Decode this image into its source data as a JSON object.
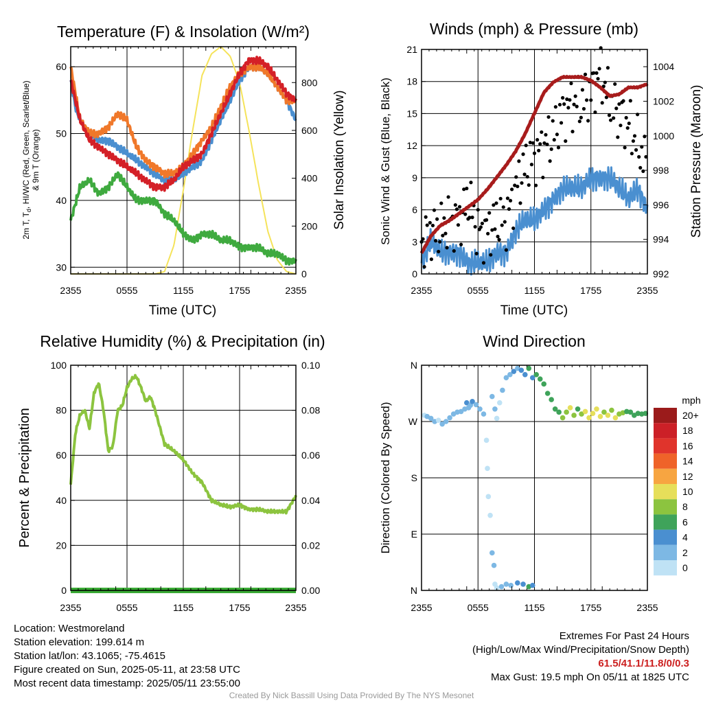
{
  "colors": {
    "temp": "#d42027",
    "dewpoint": "#3faa3f",
    "heat_index": "#4a8fd0",
    "temp_9m": "#f0782a",
    "insolation": "#f5e35a",
    "wind": "#4a8fd0",
    "gust": "#000000",
    "pressure": "#a81c1c",
    "rh": "#8cc43f",
    "precip": "#3aaa35"
  },
  "charts": {
    "temperature": {
      "title": "Temperature (F) & Insolation (W/m²)",
      "ylabel_left": "2m T, Td, HI/WC (Red, Green, Scarlet/Blue) & 9m T (Orange)",
      "ylabel_left_line1": "2m T, T",
      "ylabel_left_sub": "d",
      "ylabel_left_line1_rest": ", HI/WC (Red, Green, Scarlet/Blue)",
      "ylabel_left_line2": "& 9m T (Orange)",
      "ylabel_right": "Solar Insolation (Yellow)",
      "xlabel": "Time (UTC)"
    },
    "winds": {
      "title": "Winds (mph) & Pressure (mb)",
      "ylabel_left": "Sonic Wind & Gust (Blue, Black)",
      "ylabel_right": "Station Pressure (Maroon)",
      "xlabel": "Time (UTC)"
    },
    "humidity": {
      "title": "Relative Humidity (%) & Precipitation (in)",
      "ylabel_left": "Percent & Precipitation"
    },
    "direction": {
      "title": "Wind Direction",
      "ylabel_left": "Direction (Colored By Speed)",
      "legend_title": "mph",
      "legend_labels": [
        "20+",
        "18",
        "16",
        "14",
        "12",
        "10",
        "8",
        "6",
        "4",
        "2",
        "0"
      ],
      "legend_colors": [
        "#9b1b1b",
        "#cc2027",
        "#e0342c",
        "#ef6329",
        "#f7a541",
        "#e6df5a",
        "#8cc43f",
        "#3fa35a",
        "#4a8fd0",
        "#7db8e4",
        "#bfe2f5"
      ]
    }
  },
  "chart_data": [
    {
      "type": "line",
      "title": "Temperature (F) & Insolation (W/m²)",
      "xlabel": "Time (UTC)",
      "x_ticks": [
        "2355",
        "0555",
        "1155",
        "1755",
        "2355"
      ],
      "x_hours": [
        0,
        30
      ],
      "ylim": [
        29,
        63
      ],
      "y_ticks": [
        30,
        40,
        50,
        60
      ],
      "y2lim": [
        0,
        950
      ],
      "y2_ticks": [
        0,
        200,
        400,
        600,
        800
      ],
      "series": [
        {
          "name": "2m T",
          "color_key": "temp",
          "x": [
            0,
            0.5,
            1,
            2,
            3,
            4,
            5,
            6,
            7,
            8,
            9,
            10,
            11,
            12,
            13,
            14,
            15,
            16,
            17,
            18,
            19,
            20,
            21,
            22,
            23,
            24
          ],
          "y": [
            58,
            55,
            52,
            49,
            48,
            47,
            46,
            45,
            44,
            43,
            42,
            42,
            43,
            45,
            46,
            47,
            50,
            53,
            56,
            59,
            61,
            61,
            60,
            58,
            56,
            55
          ]
        },
        {
          "name": "HI/WC",
          "color_key": "heat_index",
          "x": [
            0,
            0.5,
            1,
            2,
            3,
            4,
            5,
            6,
            7,
            8,
            9,
            10,
            11,
            12,
            13,
            14,
            15,
            16,
            17,
            18,
            19,
            20,
            21,
            22,
            23,
            24
          ],
          "y": [
            58,
            54,
            52,
            50,
            49,
            49,
            48,
            47,
            46,
            45,
            44,
            43,
            43,
            44,
            45,
            46,
            49,
            52,
            55,
            58,
            60,
            60,
            59,
            57,
            55,
            52
          ]
        },
        {
          "name": "Td",
          "color_key": "dewpoint",
          "x": [
            0,
            1,
            2,
            3,
            4,
            5,
            6,
            7,
            8,
            9,
            10,
            11,
            12,
            13,
            14,
            15,
            16,
            17,
            18,
            19,
            20,
            21,
            22,
            23,
            24
          ],
          "y": [
            37,
            42,
            43,
            41,
            42,
            44,
            42,
            40,
            40,
            40,
            38,
            37,
            35,
            34,
            35,
            35,
            34,
            34,
            33,
            33,
            33,
            32,
            32,
            31,
            31
          ]
        },
        {
          "name": "9m T",
          "color_key": "temp_9m",
          "x": [
            0,
            1,
            2,
            3,
            4,
            5,
            6,
            7,
            8,
            9,
            10,
            11,
            12,
            13,
            14,
            15,
            16,
            17,
            18,
            19,
            20,
            21,
            22,
            23,
            24
          ],
          "y": [
            60,
            52,
            50,
            50,
            51,
            53,
            52,
            48,
            46,
            45,
            44,
            44,
            45,
            47,
            49,
            51,
            54,
            57,
            59,
            60,
            60,
            59,
            57,
            55,
            55
          ]
        },
        {
          "name": "Solar Insolation",
          "color_key": "insolation",
          "axis": "right",
          "x": [
            0,
            5,
            8,
            9,
            10,
            11,
            12,
            13,
            14,
            15,
            16,
            17,
            18,
            19,
            20,
            21,
            22,
            23,
            24
          ],
          "y": [
            0,
            0,
            0,
            0,
            10,
            120,
            350,
            600,
            830,
            920,
            950,
            910,
            800,
            600,
            380,
            180,
            60,
            10,
            0
          ]
        }
      ]
    },
    {
      "type": "line",
      "title": "Winds (mph) & Pressure (mb)",
      "xlabel": "Time (UTC)",
      "x_ticks": [
        "2355",
        "0555",
        "1155",
        "1755",
        "2355"
      ],
      "ylim": [
        0,
        21
      ],
      "y_ticks": [
        0,
        3,
        6,
        9,
        12,
        15,
        18,
        21
      ],
      "y2lim": [
        992,
        1005
      ],
      "y2_ticks": [
        992,
        994,
        996,
        998,
        1000,
        1002,
        1004
      ],
      "series": [
        {
          "name": "Sonic Wind",
          "color_key": "wind",
          "x": [
            0,
            1,
            2,
            3,
            4,
            5,
            6,
            7,
            8,
            9,
            10,
            11,
            12,
            13,
            14,
            15,
            16,
            17,
            18,
            19,
            20,
            21,
            22,
            23,
            24
          ],
          "y": [
            1,
            3,
            2,
            2,
            2,
            1,
            1,
            1,
            2,
            2,
            4,
            5,
            5,
            6,
            7,
            8,
            8,
            8,
            9,
            9,
            9,
            8,
            7,
            8,
            6
          ]
        },
        {
          "name": "Gust",
          "color_key": "gust",
          "x": [
            0,
            1,
            2,
            3,
            4,
            5,
            6,
            7,
            8,
            9,
            10,
            11,
            12,
            13,
            14,
            15,
            16,
            17,
            18,
            19,
            20,
            21,
            22,
            23,
            24
          ],
          "y": [
            3,
            4,
            4,
            5,
            5,
            7,
            4,
            4,
            5,
            5,
            8,
            10,
            11,
            12,
            13,
            15,
            16,
            16,
            17,
            19,
            16,
            15,
            14,
            12,
            10
          ]
        },
        {
          "name": "Station Pressure",
          "color_key": "pressure",
          "axis": "right",
          "x": [
            0,
            1,
            2,
            3,
            4,
            5,
            6,
            7,
            8,
            9,
            10,
            11,
            12,
            13,
            14,
            15,
            16,
            17,
            18,
            19,
            20,
            21,
            22,
            23,
            24
          ],
          "y": [
            993.2,
            994.2,
            994.8,
            995.1,
            995.5,
            995.9,
            996.3,
            996.9,
            997.6,
            998.3,
            999.1,
            1000.1,
            1001.3,
            1002.5,
            1003.1,
            1003.4,
            1003.4,
            1003.4,
            1003.2,
            1002.8,
            1002.3,
            1002.4,
            1002.8,
            1002.8,
            1003.0
          ]
        }
      ]
    },
    {
      "type": "line",
      "title": "Relative Humidity (%) & Precipitation (in)",
      "x_ticks": [
        "2355",
        "0555",
        "1155",
        "1755",
        "2355"
      ],
      "ylim": [
        0,
        100
      ],
      "y_ticks": [
        0,
        20,
        40,
        60,
        80,
        100
      ],
      "y2lim": [
        0,
        0.1
      ],
      "y2_ticks": [
        "0.00",
        "0.02",
        "0.04",
        "0.06",
        "0.08",
        "0.10"
      ],
      "series": [
        {
          "name": "Relative Humidity",
          "color_key": "rh",
          "x": [
            0,
            0.5,
            1,
            1.5,
            2,
            2.5,
            3,
            3.5,
            4,
            4.5,
            5,
            5.5,
            6,
            6.5,
            7,
            7.5,
            8,
            8.5,
            9,
            10,
            11,
            12,
            13,
            14,
            15,
            16,
            17,
            18,
            19,
            20,
            21,
            22,
            23,
            24
          ],
          "y": [
            47,
            70,
            78,
            80,
            72,
            88,
            92,
            80,
            62,
            64,
            80,
            82,
            90,
            94,
            95,
            90,
            84,
            86,
            80,
            65,
            62,
            58,
            52,
            48,
            40,
            38,
            37,
            38,
            36,
            36,
            35,
            35,
            35,
            42
          ]
        },
        {
          "name": "Precipitation",
          "color_key": "precip",
          "axis": "right",
          "x": [
            0,
            24
          ],
          "y": [
            0,
            0
          ]
        }
      ]
    },
    {
      "type": "scatter",
      "title": "Wind Direction",
      "x_ticks": [
        "2355",
        "0555",
        "1155",
        "1755",
        "2355"
      ],
      "y_ticks": [
        "N",
        "W",
        "S",
        "E",
        "N"
      ],
      "ylim_deg": [
        0,
        360
      ],
      "points": [
        [
          0.3,
          280,
          1
        ],
        [
          0.6,
          278,
          2
        ],
        [
          1.0,
          275,
          2
        ],
        [
          1.4,
          270,
          2
        ],
        [
          1.8,
          272,
          1
        ],
        [
          2.2,
          266,
          2
        ],
        [
          2.6,
          270,
          2
        ],
        [
          3.0,
          276,
          2
        ],
        [
          3.4,
          282,
          2
        ],
        [
          3.8,
          285,
          2
        ],
        [
          4.2,
          286,
          3
        ],
        [
          4.6,
          290,
          3
        ],
        [
          4.8,
          300,
          4
        ],
        [
          5.0,
          292,
          2
        ],
        [
          5.2,
          296,
          3
        ],
        [
          5.4,
          302,
          4
        ],
        [
          5.8,
          297,
          3
        ],
        [
          6.2,
          290,
          3
        ],
        [
          6.6,
          282,
          2
        ],
        [
          6.9,
          240,
          1
        ],
        [
          7.0,
          195,
          1
        ],
        [
          7.1,
          150,
          1
        ],
        [
          7.3,
          120,
          1
        ],
        [
          7.5,
          60,
          2
        ],
        [
          7.7,
          40,
          3
        ],
        [
          7.8,
          10,
          1
        ],
        [
          7.5,
          310,
          3
        ],
        [
          7.8,
          290,
          2
        ],
        [
          8.0,
          275,
          1
        ],
        [
          8.3,
          300,
          1
        ],
        [
          8.6,
          320,
          2
        ],
        [
          9.0,
          340,
          2
        ],
        [
          9.4,
          345,
          3
        ],
        [
          9.8,
          350,
          4
        ],
        [
          10.2,
          355,
          3
        ],
        [
          10.6,
          352,
          4
        ],
        [
          11.0,
          345,
          4
        ],
        [
          11.4,
          355,
          6
        ],
        [
          11.8,
          340,
          5
        ],
        [
          12.2,
          345,
          6
        ],
        [
          12.6,
          338,
          7
        ],
        [
          13.0,
          330,
          6
        ],
        [
          13.4,
          315,
          7
        ],
        [
          13.8,
          305,
          6
        ],
        [
          14.2,
          290,
          6
        ],
        [
          14.6,
          285,
          7
        ],
        [
          15.0,
          276,
          9
        ],
        [
          15.4,
          285,
          8
        ],
        [
          15.8,
          292,
          10
        ],
        [
          16.2,
          280,
          9
        ],
        [
          16.6,
          290,
          7
        ],
        [
          17.0,
          282,
          9
        ],
        [
          17.4,
          286,
          10
        ],
        [
          17.8,
          276,
          11
        ],
        [
          18.2,
          283,
          10
        ],
        [
          18.6,
          290,
          10
        ],
        [
          19.0,
          278,
          11
        ],
        [
          19.4,
          285,
          9
        ],
        [
          19.8,
          280,
          11
        ],
        [
          20.2,
          288,
          8
        ],
        [
          20.6,
          276,
          10
        ],
        [
          21.0,
          282,
          9
        ],
        [
          21.4,
          284,
          8
        ],
        [
          21.8,
          286,
          7
        ],
        [
          22.2,
          285,
          6
        ],
        [
          22.6,
          280,
          7
        ],
        [
          23.0,
          283,
          6
        ],
        [
          23.4,
          282,
          6
        ],
        [
          23.8,
          283,
          6
        ],
        [
          9.0,
          10,
          2
        ],
        [
          9.5,
          8,
          3
        ],
        [
          10.2,
          12,
          4
        ],
        [
          10.8,
          10,
          4
        ],
        [
          11.4,
          6,
          6
        ],
        [
          11.8,
          8,
          4
        ],
        [
          8.0,
          4,
          1
        ],
        [
          8.5,
          6,
          2
        ]
      ]
    }
  ],
  "info": {
    "location": "Location: Westmoreland",
    "elevation": "Station elevation: 199.614 m",
    "latlon": "Station lat/lon: 43.1065; -75.4615",
    "created": "Figure created on Sun, 2025-05-11, at 23:58 UTC",
    "recent": "Most recent data timestamp: 2025/05/11 23:55:00"
  },
  "extremes": {
    "heading": "Extremes For Past 24 Hours",
    "subheading": "(High/Low/Max Wind/Precipitation/Snow Depth)",
    "values": "61.5/41.1/11.8/0/0.3",
    "max_gust": "Max Gust: 19.5 mph On 05/11 at 1825 UTC"
  },
  "credit": "Created By Nick Bassill Using Data Provided By The NYS Mesonet"
}
